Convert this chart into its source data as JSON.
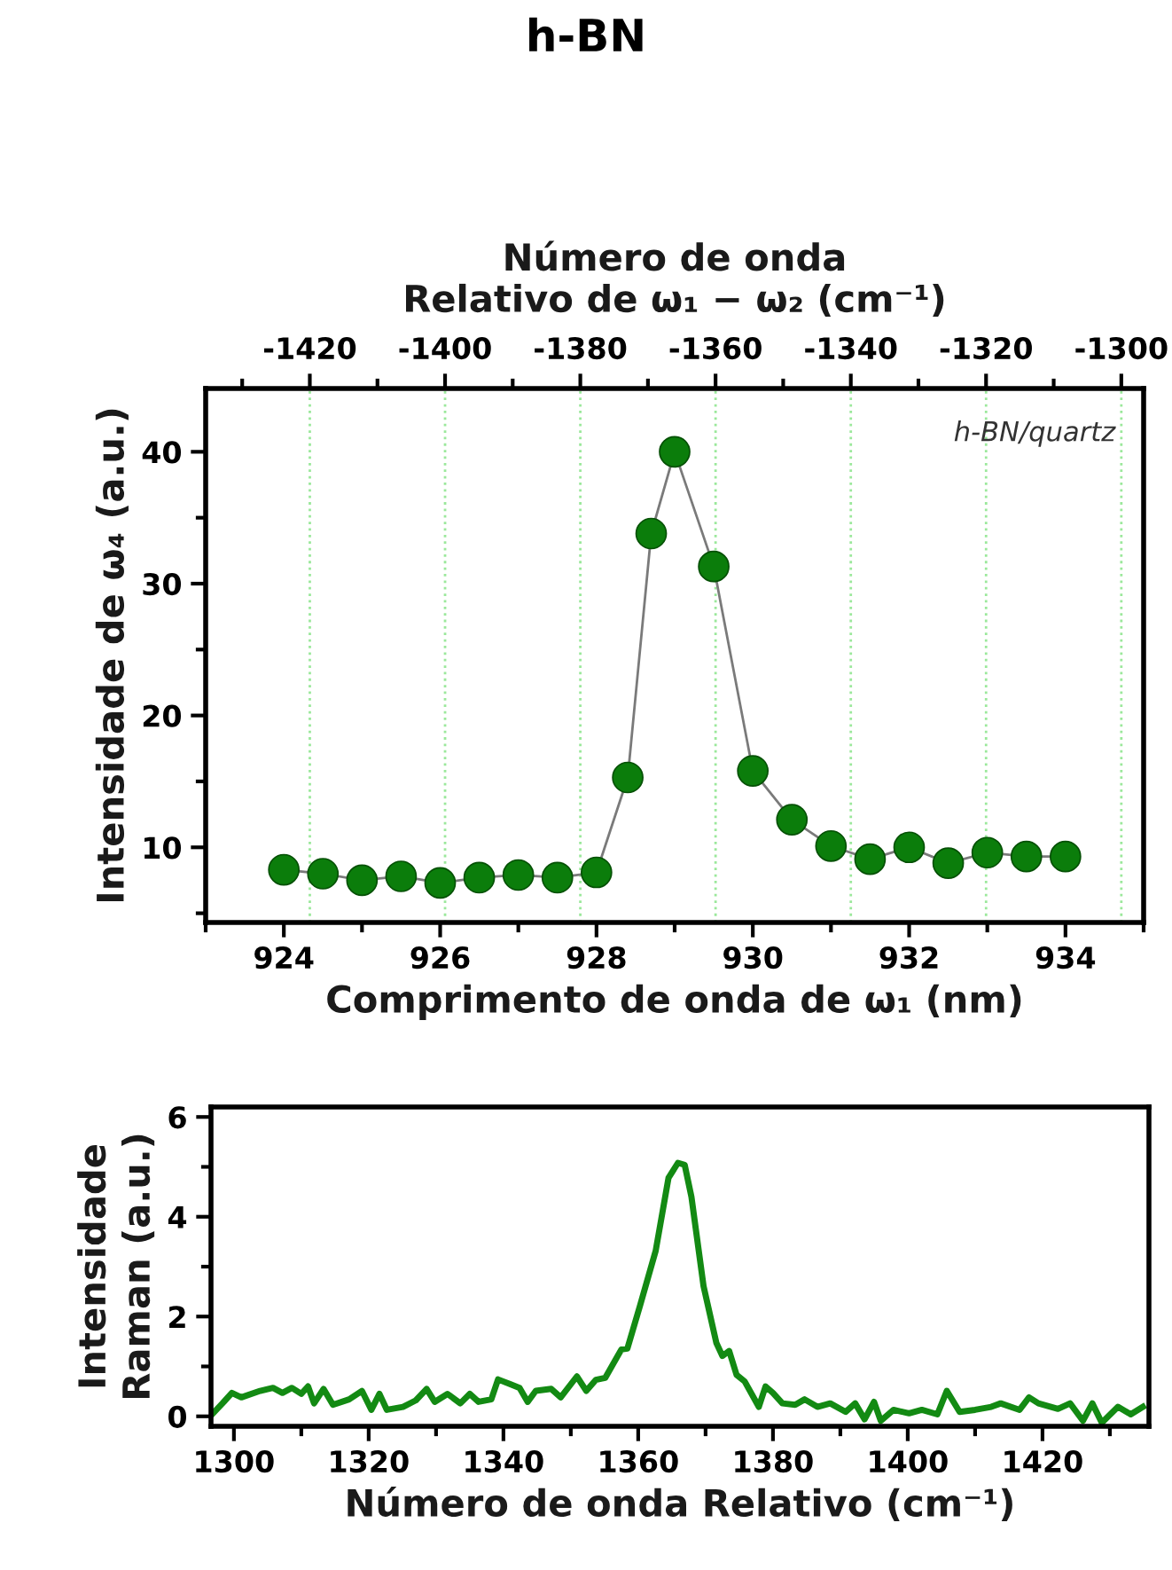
{
  "chart_data": [
    {
      "type": "line",
      "title": "h-BN",
      "xlabel": "Comprimento de onda de ω₁ (nm)",
      "x2label": "Número de onda\nRelativo de ω₁ − ω₂ (cm⁻¹)",
      "ylabel": "Intensidade de ω₄ (a.u.)",
      "annotations": [
        "h-BN/quartz"
      ],
      "xlim": [
        923,
        935
      ],
      "xticks": [
        924,
        926,
        928,
        930,
        932,
        934
      ],
      "x2lim": [
        -1435.4,
        -1296.7
      ],
      "x2ticks": [
        -1420,
        -1400,
        -1380,
        -1360,
        -1340,
        -1320,
        -1300
      ],
      "ylim": [
        4.3,
        44.8
      ],
      "yticks": [
        10,
        20,
        30,
        40
      ],
      "grid": "x",
      "marker": "circle",
      "line_style": "solid",
      "series": [
        {
          "color": "#0b7d0b",
          "x": [
            924,
            924.5,
            925,
            925.5,
            926,
            926.5,
            927,
            927.5,
            928,
            928.4,
            928.7,
            929,
            929.5,
            930,
            930.5,
            931,
            931.5,
            932,
            932.5,
            933,
            933.5,
            934
          ],
          "values": [
            8.3,
            8.0,
            7.5,
            7.8,
            7.3,
            7.7,
            7.9,
            7.7,
            8.1,
            15.3,
            33.8,
            40.0,
            31.3,
            15.8,
            12.1,
            10.1,
            9.1,
            10.0,
            8.8,
            9.6,
            9.3,
            9.3
          ]
        }
      ]
    },
    {
      "type": "line",
      "xlabel": "Número de onda Relativo (cm⁻¹)",
      "ylabel": "Intensidade\nRaman (a.u.)",
      "xlim": [
        1296.6,
        1435.8
      ],
      "xticks": [
        1300,
        1320,
        1340,
        1360,
        1380,
        1400,
        1420
      ],
      "ylim": [
        -0.2,
        6.2
      ],
      "yticks": [
        0,
        2,
        4,
        6
      ],
      "marker": "none",
      "line_style": "solid",
      "series": [
        {
          "color": "#138a13",
          "x": [
            1296.9,
            1298.3,
            1299.7,
            1301.1,
            1303.9,
            1305.8,
            1307.2,
            1308.6,
            1310,
            1311,
            1311.9,
            1313.3,
            1314.7,
            1317.1,
            1319,
            1320.4,
            1321.6,
            1322.7,
            1325.1,
            1327,
            1328.6,
            1329.8,
            1331.7,
            1333.6,
            1335,
            1336.3,
            1338.2,
            1339.2,
            1341.1,
            1342.4,
            1343.6,
            1344.8,
            1347.1,
            1348.5,
            1350.9,
            1352.3,
            1353.7,
            1355.1,
            1357.5,
            1358.4,
            1360.3,
            1362.6,
            1364.5,
            1365.9,
            1366.9,
            1367.9,
            1369.7,
            1371.6,
            1372.5,
            1373.5,
            1374.6,
            1375.8,
            1377.9,
            1378.9,
            1380,
            1381.4,
            1383.3,
            1384.7,
            1386.6,
            1388.5,
            1390.8,
            1392.2,
            1393.6,
            1395,
            1396,
            1397.9,
            1400.2,
            1402.1,
            1404.4,
            1405.8,
            1407.7,
            1410,
            1412.4,
            1413.8,
            1416.6,
            1418,
            1419.4,
            1422.3,
            1424.1,
            1426,
            1427.4,
            1428.8,
            1431.2,
            1433.1,
            1434.9
          ],
          "values": [
            0.06,
            0.26,
            0.47,
            0.38,
            0.51,
            0.57,
            0.47,
            0.57,
            0.45,
            0.6,
            0.26,
            0.55,
            0.23,
            0.34,
            0.51,
            0.13,
            0.45,
            0.13,
            0.19,
            0.32,
            0.55,
            0.29,
            0.45,
            0.26,
            0.45,
            0.29,
            0.34,
            0.74,
            0.64,
            0.57,
            0.29,
            0.51,
            0.55,
            0.38,
            0.8,
            0.51,
            0.73,
            0.77,
            1.34,
            1.36,
            2.23,
            3.32,
            4.78,
            5.08,
            5.04,
            4.4,
            2.61,
            1.47,
            1.21,
            1.31,
            0.83,
            0.7,
            0.19,
            0.6,
            0.47,
            0.26,
            0.23,
            0.34,
            0.19,
            0.26,
            0.09,
            0.26,
            -0.06,
            0.29,
            -0.09,
            0.13,
            0.06,
            0.13,
            0.04,
            0.51,
            0.09,
            0.13,
            0.19,
            0.26,
            0.13,
            0.38,
            0.26,
            0.15,
            0.26,
            -0.09,
            0.26,
            -0.13,
            0.19,
            0.04,
            0.19
          ]
        }
      ]
    }
  ]
}
